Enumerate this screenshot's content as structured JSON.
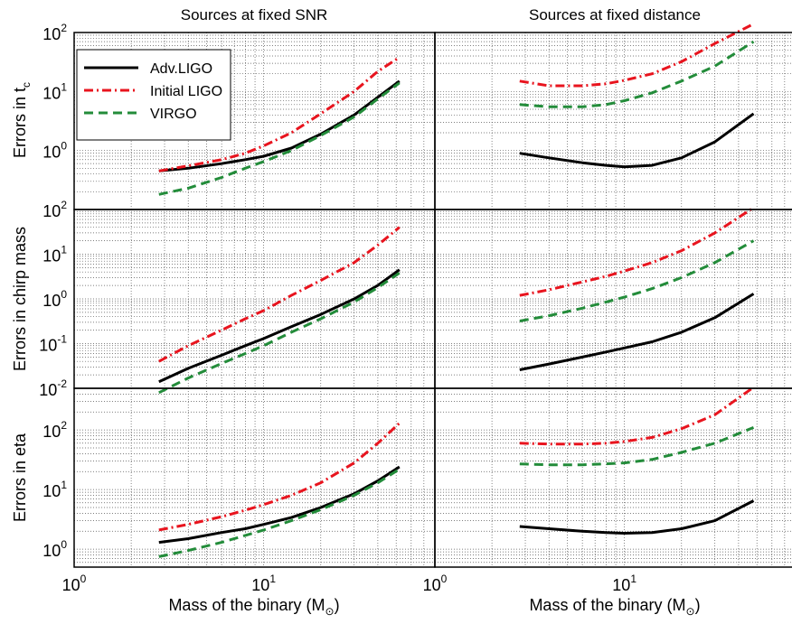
{
  "chart_data": {
    "type": "line",
    "x_scale": "log",
    "y_scale": "log",
    "grid": true,
    "legend_position": "top-left",
    "xlabel": "Mass of the binary (M",
    "xlabel_sub": "⊙",
    "xlabel_close": ")",
    "xlim": [
      1,
      80
    ],
    "x_tick_base": "10",
    "x_tick_exps": [
      "0",
      "1"
    ],
    "series_styles": [
      {
        "name": "Adv.LIGO",
        "color": "#000000",
        "dash": "",
        "width": 3
      },
      {
        "name": "Initial LIGO",
        "color": "#e8141e",
        "dash": "10,4,2,4",
        "width": 3
      },
      {
        "name": "VIRGO",
        "color": "#238c3a",
        "dash": "10,6",
        "width": 3
      }
    ],
    "columns": [
      {
        "title": "Sources at fixed SNR"
      },
      {
        "title": "Sources at fixed distance"
      }
    ],
    "rows": [
      {
        "ylabel": "Errors in t",
        "ylabel_sub": "c",
        "ylim": [
          0.1,
          100
        ],
        "y_tick_labels": [
          {
            "base": "10",
            "exp": "0",
            "value": 1
          },
          {
            "base": "10",
            "exp": "1",
            "value": 10
          },
          {
            "base": "10",
            "exp": "2",
            "value": 100
          }
        ],
        "panels": [
          {
            "x": [
              2.8,
              4,
              6,
              8,
              10,
              14,
              20,
              30,
              40,
              52
            ],
            "series": [
              {
                "name": "Adv.LIGO",
                "values": [
                  0.45,
                  0.5,
                  0.6,
                  0.7,
                  0.8,
                  1.1,
                  1.9,
                  4.0,
                  8.0,
                  15.0
                ]
              },
              {
                "name": "Initial LIGO",
                "values": [
                  0.45,
                  0.55,
                  0.7,
                  0.9,
                  1.2,
                  2.0,
                  4.2,
                  10.0,
                  22.0,
                  38.0
                ]
              },
              {
                "name": "VIRGO",
                "values": [
                  0.18,
                  0.23,
                  0.35,
                  0.5,
                  0.65,
                  1.0,
                  1.8,
                  3.7,
                  7.5,
                  14.0
                ]
              }
            ]
          },
          {
            "x": [
              2.8,
              4,
              6,
              8,
              10,
              14,
              20,
              30,
              48
            ],
            "series": [
              {
                "name": "Adv.LIGO",
                "values": [
                  0.9,
                  0.75,
                  0.62,
                  0.56,
                  0.53,
                  0.56,
                  0.75,
                  1.4,
                  4.2
                ]
              },
              {
                "name": "Initial LIGO",
                "values": [
                  15.0,
                  12.5,
                  12.5,
                  13.5,
                  15.5,
                  20.0,
                  32.0,
                  65.0,
                  140.0
                ]
              },
              {
                "name": "VIRGO",
                "values": [
                  6.0,
                  5.5,
                  5.5,
                  6.0,
                  7.0,
                  9.5,
                  15.0,
                  27.0,
                  70.0
                ]
              }
            ]
          }
        ]
      },
      {
        "ylabel": "Errors in chirp mass",
        "ylabel_sub": "",
        "ylim": [
          0.01,
          100
        ],
        "y_tick_labels": [
          {
            "base": "10",
            "exp": "-2",
            "value": 0.01
          },
          {
            "base": "10",
            "exp": "-1",
            "value": 0.1
          },
          {
            "base": "10",
            "exp": "0",
            "value": 1
          },
          {
            "base": "10",
            "exp": "1",
            "value": 10
          },
          {
            "base": "10",
            "exp": "2",
            "value": 100
          }
        ],
        "panels": [
          {
            "x": [
              2.8,
              4,
              6,
              8,
              10,
              14,
              20,
              30,
              40,
              52
            ],
            "series": [
              {
                "name": "Adv.LIGO",
                "values": [
                  0.014,
                  0.028,
                  0.055,
                  0.09,
                  0.13,
                  0.24,
                  0.45,
                  1.0,
                  2.0,
                  4.5
                ]
              },
              {
                "name": "Initial LIGO",
                "values": [
                  0.04,
                  0.09,
                  0.2,
                  0.36,
                  0.55,
                  1.2,
                  2.6,
                  6.5,
                  16.0,
                  40.0
                ]
              },
              {
                "name": "VIRGO",
                "values": [
                  0.008,
                  0.017,
                  0.036,
                  0.06,
                  0.09,
                  0.18,
                  0.36,
                  0.85,
                  1.8,
                  3.8
                ]
              }
            ]
          },
          {
            "x": [
              2.8,
              4,
              6,
              8,
              10,
              14,
              20,
              30,
              48
            ],
            "series": [
              {
                "name": "Adv.LIGO",
                "values": [
                  0.026,
                  0.035,
                  0.05,
                  0.065,
                  0.08,
                  0.11,
                  0.18,
                  0.38,
                  1.3
                ]
              },
              {
                "name": "Initial LIGO",
                "values": [
                  1.2,
                  1.6,
                  2.4,
                  3.2,
                  4.2,
                  6.5,
                  12.0,
                  30.0,
                  110.0
                ]
              },
              {
                "name": "VIRGO",
                "values": [
                  0.32,
                  0.42,
                  0.62,
                  0.85,
                  1.1,
                  1.7,
                  3.0,
                  6.5,
                  20.0
                ]
              }
            ]
          }
        ]
      },
      {
        "ylabel": "Errors in eta",
        "ylabel_sub": "",
        "ylim": [
          0.5,
          500
        ],
        "y_tick_labels": [
          {
            "base": "10",
            "exp": "0",
            "value": 1
          },
          {
            "base": "10",
            "exp": "1",
            "value": 10
          },
          {
            "base": "10",
            "exp": "2",
            "value": 100
          }
        ],
        "panels": [
          {
            "x": [
              2.8,
              4,
              6,
              8,
              10,
              14,
              20,
              30,
              40,
              52
            ],
            "series": [
              {
                "name": "Adv.LIGO",
                "values": [
                  1.3,
                  1.5,
                  1.9,
                  2.2,
                  2.6,
                  3.4,
                  5.0,
                  8.5,
                  14.0,
                  24.0
                ]
              },
              {
                "name": "Initial LIGO",
                "values": [
                  2.1,
                  2.6,
                  3.5,
                  4.5,
                  5.6,
                  8.0,
                  13.0,
                  28.0,
                  60.0,
                  130.0
                ]
              },
              {
                "name": "VIRGO",
                "values": [
                  0.75,
                  0.95,
                  1.3,
                  1.7,
                  2.1,
                  3.0,
                  4.6,
                  8.0,
                  13.0,
                  22.0
                ]
              }
            ]
          },
          {
            "x": [
              2.8,
              4,
              6,
              8,
              10,
              14,
              20,
              30,
              48
            ],
            "series": [
              {
                "name": "Adv.LIGO",
                "values": [
                  2.4,
                  2.2,
                  2.0,
                  1.9,
                  1.85,
                  1.9,
                  2.2,
                  3.0,
                  6.5
                ]
              },
              {
                "name": "Initial LIGO",
                "values": [
                  60.0,
                  58.0,
                  58.0,
                  60.0,
                  64.0,
                  75.0,
                  105.0,
                  180.0,
                  520.0
                ]
              },
              {
                "name": "VIRGO",
                "values": [
                  27.0,
                  26.0,
                  26.0,
                  27.0,
                  28.0,
                  32.0,
                  42.0,
                  60.0,
                  110.0
                ]
              }
            ]
          }
        ]
      }
    ]
  }
}
